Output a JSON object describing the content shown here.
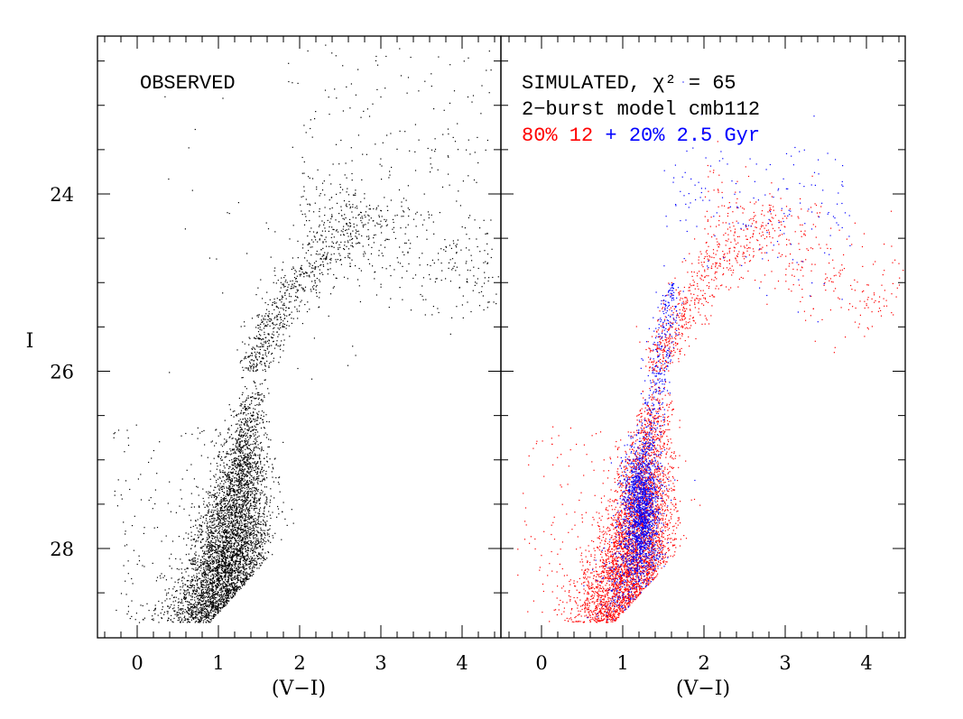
{
  "chart_data": [
    {
      "type": "scatter",
      "panel": "left",
      "annotation": "OBSERVED",
      "xlabel": "(V−I)",
      "ylabel": "I",
      "xlim": [
        -0.5,
        4.47
      ],
      "ylim": [
        29.0,
        22.22
      ],
      "y_inverted": true,
      "xticks": [
        "0",
        "1",
        "2",
        "3",
        "4"
      ],
      "yticks": [
        "24",
        "26",
        "28"
      ],
      "grid": false,
      "series": [
        {
          "color": "#000000",
          "locus": [
            [
              1.0,
              28.8
            ],
            [
              1.15,
              28.0
            ],
            [
              1.3,
              27.0
            ],
            [
              1.45,
              26.0
            ],
            [
              1.9,
              25.0
            ],
            [
              3.0,
              24.5
            ],
            [
              4.3,
              24.8
            ]
          ]
        }
      ]
    },
    {
      "type": "scatter",
      "panel": "right",
      "annotation_lines": [
        {
          "text": "SIMULATED, χ² = 65",
          "color": "#000000"
        },
        {
          "text": "2−burst model cmb112",
          "color": "#000000"
        }
      ],
      "legend_line": [
        {
          "text": "80% 12",
          "color": "#ff0000"
        },
        {
          "text": " + 20% 2.5 Gyr",
          "color": "#0000ff"
        }
      ],
      "xlabel": "(V−I)",
      "xlim": [
        -0.5,
        4.47
      ],
      "ylim": [
        29.0,
        22.22
      ],
      "y_inverted": true,
      "xticks": [
        "0",
        "1",
        "2",
        "3",
        "4"
      ],
      "grid": false,
      "series": [
        {
          "name": "80% 12",
          "color": "#ff0000",
          "locus": [
            [
              0.9,
              28.8
            ],
            [
              1.1,
              28.0
            ],
            [
              1.35,
              27.0
            ],
            [
              1.5,
              26.0
            ],
            [
              2.0,
              25.0
            ],
            [
              3.0,
              24.6
            ],
            [
              4.3,
              25.3
            ]
          ]
        },
        {
          "name": "20% 2.5 Gyr",
          "color": "#0000ff",
          "locus": [
            [
              1.2,
              28.5
            ],
            [
              1.2,
              27.6
            ],
            [
              1.35,
              26.5
            ],
            [
              1.6,
              25.5
            ],
            [
              2.5,
              24.3
            ]
          ]
        }
      ]
    }
  ]
}
